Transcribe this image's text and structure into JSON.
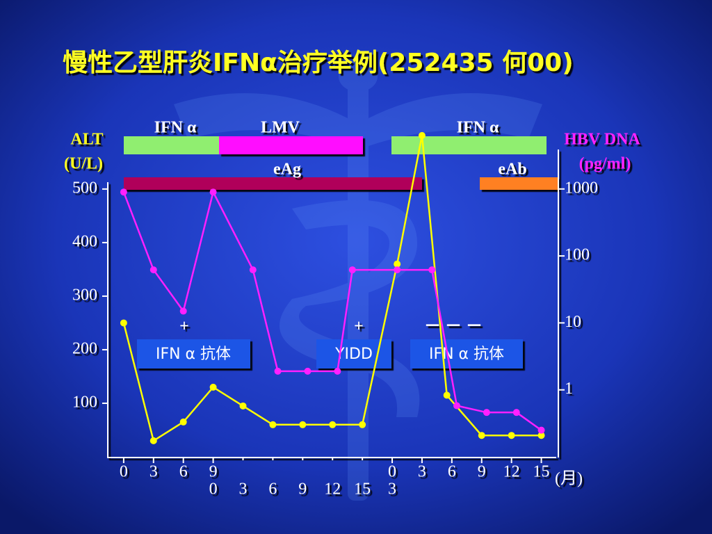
{
  "chart_data": {
    "type": "line",
    "title": "慢性乙型肝炎IFNα治疗举例(252435 何00)",
    "y_label": [
      "ALT",
      "(U/L)"
    ],
    "y2_label": [
      "HBV DNA",
      "(pg/ml)"
    ],
    "x_unit": "(月)",
    "xlim": [
      -1.6,
      43.5
    ],
    "ylim": [
      0,
      605
    ],
    "yticks": [
      100,
      200,
      300,
      400,
      500
    ],
    "y2lim": [
      0.1,
      6900
    ],
    "y2scale": "log",
    "y2ticks": [
      1,
      10,
      100,
      1000
    ],
    "xticks": [
      {
        "value": 0,
        "label": "0"
      },
      {
        "value": 3,
        "label": "3"
      },
      {
        "value": 6,
        "label": "6"
      },
      {
        "value": 9,
        "label": "9"
      },
      {
        "value": 27,
        "label": "0"
      },
      {
        "value": 30,
        "label": "3"
      },
      {
        "value": 33,
        "label": "6"
      },
      {
        "value": 36,
        "label": "9"
      },
      {
        "value": 39,
        "label": "12"
      },
      {
        "value": 42,
        "label": "15"
      }
    ],
    "xticks_row2": [
      {
        "value": 9,
        "label": "0"
      },
      {
        "value": 12,
        "label": "3"
      },
      {
        "value": 15,
        "label": "6"
      },
      {
        "value": 18,
        "label": "9"
      },
      {
        "value": 21,
        "label": "12"
      },
      {
        "value": 24,
        "label": "15"
      },
      {
        "value": 27,
        "label": "3"
      }
    ],
    "series": [
      {
        "color": "#ffff00",
        "axis": "y",
        "x": [
          0,
          3,
          6,
          9,
          12,
          15,
          18,
          21,
          24,
          27.5,
          30,
          32.5,
          36,
          39,
          42
        ],
        "values": [
          250,
          30,
          65,
          130,
          95,
          60,
          60,
          60,
          60,
          360,
          600,
          115,
          40,
          40,
          40
        ]
      },
      {
        "color": "#ff20ff",
        "axis": "y2",
        "x": [
          0,
          3,
          6,
          9,
          13,
          15.5,
          18.5,
          21.5,
          23,
          27.5,
          31,
          33.5,
          36.5,
          39.5,
          42
        ],
        "values": [
          900,
          62,
          15,
          900,
          62,
          1.9,
          1.9,
          1.9,
          62,
          62,
          62,
          0.58,
          0.46,
          0.46,
          0.25
        ]
      }
    ],
    "bars": [
      "IFN α",
      "LMV",
      "IFN α",
      "eAg",
      "eAb"
    ],
    "annotations": [
      "+",
      "+",
      "－ －  －",
      "IFN α 抗体",
      "YIDD",
      "IFN α 抗体"
    ]
  }
}
